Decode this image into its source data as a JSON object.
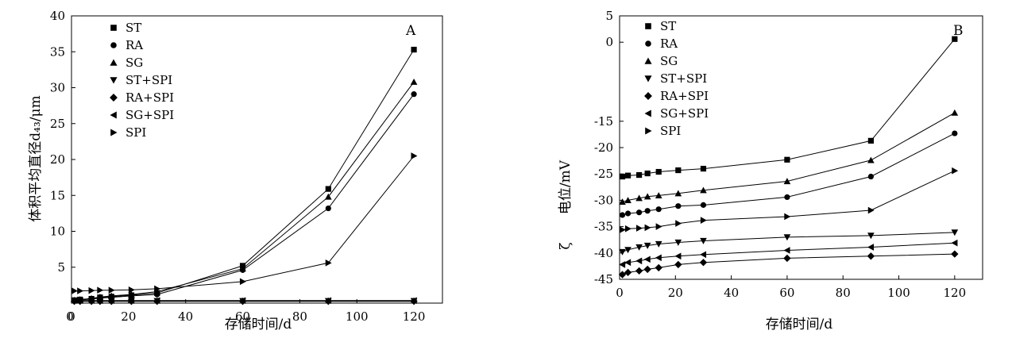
{
  "chart_data": [
    {
      "type": "line",
      "panel_label": "A",
      "xlabel": "存储时间/d",
      "ylabel": "体积平均直径d₄₃/μm",
      "xlim": [
        0,
        130
      ],
      "ylim": [
        0,
        40
      ],
      "xticks": [
        0,
        20,
        40,
        60,
        80,
        100,
        120
      ],
      "yticks": [
        5,
        10,
        15,
        20,
        25,
        30,
        35,
        40
      ],
      "y_origin_label": "0",
      "legend_position": "top-left",
      "grid": false,
      "series": [
        {
          "name": "ST",
          "marker": "square",
          "x": [
            1,
            3,
            7,
            10,
            14,
            21,
            30,
            60,
            90,
            120
          ],
          "y": [
            0.4,
            0.5,
            0.6,
            0.8,
            0.9,
            1.1,
            1.4,
            5.2,
            15.9,
            35.3
          ]
        },
        {
          "name": "RA",
          "marker": "circle",
          "x": [
            1,
            3,
            7,
            10,
            14,
            21,
            30,
            60,
            90,
            120
          ],
          "y": [
            0.4,
            0.45,
            0.55,
            0.7,
            0.8,
            1.0,
            1.2,
            4.6,
            13.2,
            29.1
          ]
        },
        {
          "name": "SG",
          "marker": "triangle-up",
          "x": [
            1,
            3,
            7,
            10,
            14,
            21,
            30,
            60,
            90,
            120
          ],
          "y": [
            0.4,
            0.5,
            0.65,
            0.85,
            1.0,
            1.2,
            1.6,
            4.8,
            14.8,
            30.8
          ]
        },
        {
          "name": "ST+SPI",
          "marker": "triangle-down",
          "x": [
            1,
            3,
            7,
            10,
            14,
            21,
            30,
            60,
            90,
            120
          ],
          "y": [
            0.3,
            0.3,
            0.3,
            0.3,
            0.3,
            0.3,
            0.3,
            0.3,
            0.3,
            0.3
          ]
        },
        {
          "name": "RA+SPI",
          "marker": "diamond",
          "x": [
            1,
            3,
            7,
            10,
            14,
            21,
            30,
            60,
            90,
            120
          ],
          "y": [
            0.25,
            0.25,
            0.25,
            0.25,
            0.25,
            0.25,
            0.25,
            0.25,
            0.25,
            0.25
          ]
        },
        {
          "name": "SG+SPI",
          "marker": "triangle-left",
          "x": [
            1,
            3,
            7,
            10,
            14,
            21,
            30,
            60,
            90,
            120
          ],
          "y": [
            0.35,
            0.35,
            0.35,
            0.35,
            0.35,
            0.35,
            0.35,
            0.35,
            0.35,
            0.35
          ]
        },
        {
          "name": "SPI",
          "marker": "triangle-right",
          "x": [
            1,
            3,
            7,
            10,
            14,
            21,
            30,
            60,
            90,
            120
          ],
          "y": [
            1.7,
            1.7,
            1.75,
            1.8,
            1.8,
            1.85,
            2.0,
            3.0,
            5.6,
            20.5
          ]
        }
      ]
    },
    {
      "type": "line",
      "panel_label": "B",
      "xlabel": "存储时间/d",
      "ylabel": "电位/mV",
      "ylabel_prefix": "ζ",
      "xlim": [
        0,
        130
      ],
      "ylim": [
        -45,
        5
      ],
      "xticks": [
        0,
        20,
        40,
        60,
        80,
        100,
        120
      ],
      "yticks": [
        5,
        0,
        -15,
        -20,
        -25,
        -30,
        -35,
        -40,
        -45
      ],
      "legend_position": "top-left",
      "grid": false,
      "series": [
        {
          "name": "ST",
          "marker": "square",
          "x": [
            1,
            3,
            7,
            10,
            14,
            21,
            30,
            60,
            90,
            120
          ],
          "y": [
            -25.5,
            -25.3,
            -25.2,
            -24.9,
            -24.6,
            -24.3,
            -24.0,
            -22.3,
            -18.7,
            0.6
          ]
        },
        {
          "name": "RA",
          "marker": "circle",
          "x": [
            1,
            3,
            7,
            10,
            14,
            21,
            30,
            60,
            90,
            120
          ],
          "y": [
            -32.8,
            -32.5,
            -32.3,
            -32.0,
            -31.7,
            -31.1,
            -30.9,
            -29.4,
            -25.5,
            -17.3
          ]
        },
        {
          "name": "SG",
          "marker": "triangle-up",
          "x": [
            1,
            3,
            7,
            10,
            14,
            21,
            30,
            60,
            90,
            120
          ],
          "y": [
            -30.3,
            -30.0,
            -29.6,
            -29.3,
            -29.1,
            -28.7,
            -28.1,
            -26.4,
            -22.4,
            -13.4
          ]
        },
        {
          "name": "ST+SPI",
          "marker": "triangle-down",
          "x": [
            1,
            3,
            7,
            10,
            14,
            21,
            30,
            60,
            90,
            120
          ],
          "y": [
            -39.8,
            -39.4,
            -38.9,
            -38.6,
            -38.3,
            -38.0,
            -37.7,
            -37.0,
            -36.7,
            -36.1
          ]
        },
        {
          "name": "RA+SPI",
          "marker": "diamond",
          "x": [
            1,
            3,
            7,
            10,
            14,
            21,
            30,
            60,
            90,
            120
          ],
          "y": [
            -44.1,
            -43.7,
            -43.4,
            -43.1,
            -42.8,
            -42.2,
            -41.8,
            -41.0,
            -40.6,
            -40.2
          ]
        },
        {
          "name": "SG+SPI",
          "marker": "triangle-left",
          "x": [
            1,
            3,
            7,
            10,
            14,
            21,
            30,
            60,
            90,
            120
          ],
          "y": [
            -42.2,
            -41.8,
            -41.5,
            -41.2,
            -40.9,
            -40.6,
            -40.3,
            -39.5,
            -38.9,
            -38.1
          ]
        },
        {
          "name": "SPI",
          "marker": "triangle-right",
          "x": [
            1,
            3,
            7,
            10,
            14,
            21,
            30,
            60,
            90,
            120
          ],
          "y": [
            -35.6,
            -35.4,
            -35.3,
            -35.2,
            -35.0,
            -34.4,
            -33.8,
            -33.1,
            -31.9,
            -24.4
          ]
        }
      ]
    }
  ]
}
